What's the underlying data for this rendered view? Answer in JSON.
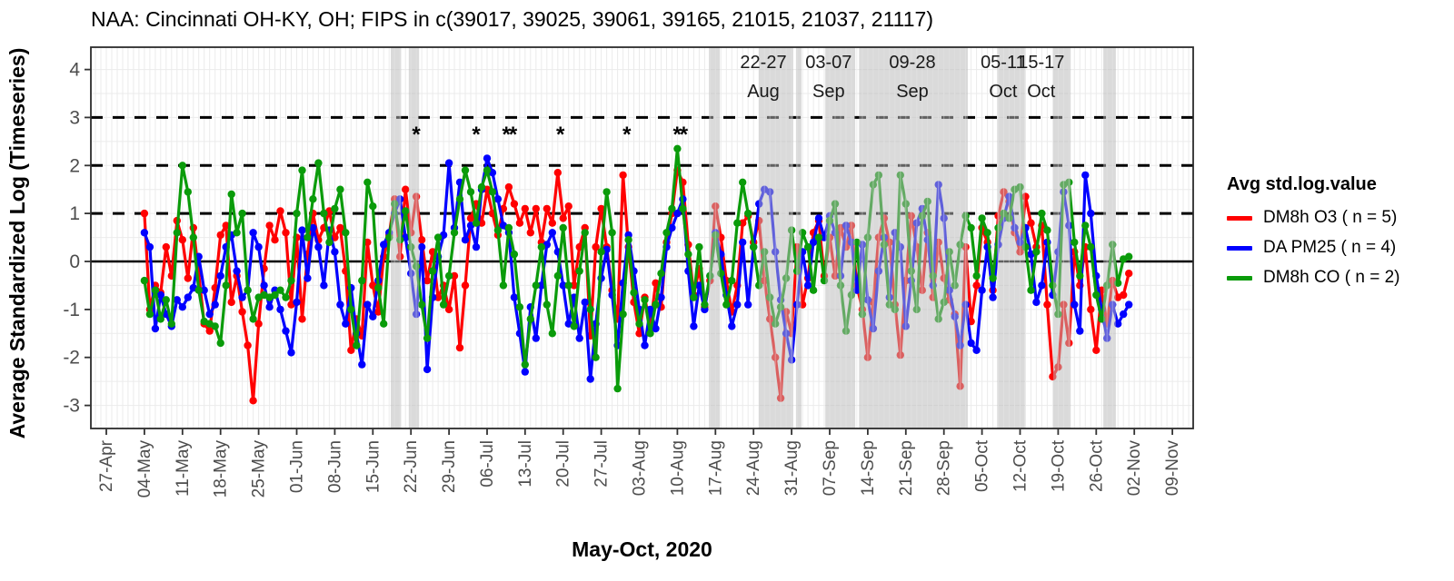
{
  "title": "NAA: Cincinnati OH-KY, OH; FIPS in c(39017, 39025, 39061, 39165, 21015, 21037, 21117)",
  "x_axis_title": "May-Oct, 2020",
  "y_axis_title": "Average Standardized Log (Timeseries)",
  "legend": {
    "title": "Avg std.log.value",
    "items": [
      {
        "label": "DM8h O3 ( n = 5)",
        "color": "#ff0000"
      },
      {
        "label": "DA PM25 ( n = 4)",
        "color": "#0000ff"
      },
      {
        "label": "DM8h CO ( n = 2)",
        "color": "#0a9b0a"
      }
    ]
  },
  "chart_data": {
    "type": "line",
    "x_frequency": "daily",
    "x_start": "2020-05-04",
    "x_end": "2020-11-01",
    "x_start_day_offset": 7,
    "x_tick_labels": [
      "27-Apr",
      "04-May",
      "11-May",
      "18-May",
      "25-May",
      "01-Jun",
      "08-Jun",
      "15-Jun",
      "22-Jun",
      "29-Jun",
      "06-Jul",
      "13-Jul",
      "20-Jul",
      "27-Jul",
      "03-Aug",
      "10-Aug",
      "17-Aug",
      "24-Aug",
      "31-Aug",
      "07-Sep",
      "14-Sep",
      "21-Sep",
      "28-Sep",
      "05-Oct",
      "12-Oct",
      "19-Oct",
      "26-Oct",
      "02-Nov",
      "09-Nov"
    ],
    "y_ticks": [
      -3,
      -2,
      -1,
      0,
      1,
      2,
      3,
      4
    ],
    "ylim": [
      -3.48,
      4.46
    ],
    "y_reference_lines": {
      "solid": [
        0
      ],
      "dashed": [
        1,
        2,
        3
      ]
    },
    "grid": true,
    "legend_position": "right",
    "colors": {
      "grid": "#ebebeb",
      "band_fill": "rgba(185,185,185,0.52)",
      "band_grid_stripe": "rgba(255,255,255,0.35)",
      "tick_text": "#4d4d4d",
      "axis": "#2b2b2b"
    },
    "series": [
      {
        "name": "DM8h O3 ( n = 5)",
        "color": "#ff0000",
        "values": [
          1.0,
          -1.0,
          -0.5,
          -0.65,
          0.3,
          -0.3,
          0.85,
          0.45,
          -0.35,
          0.7,
          -0.25,
          -1.3,
          -1.45,
          -0.55,
          0.55,
          0.75,
          -0.85,
          -0.3,
          -1.05,
          -1.75,
          -2.9,
          -1.3,
          -0.15,
          0.75,
          0.45,
          1.05,
          0.6,
          -0.9,
          0.5,
          -1.2,
          0.15,
          1.0,
          0.45,
          0.7,
          1.05,
          0.5,
          0.7,
          -0.2,
          -1.85,
          -1.2,
          -1.55,
          0.4,
          -0.5,
          -1.05,
          0.1,
          0.55,
          1.3,
          0.1,
          1.5,
          0.6,
          1.35,
          0.45,
          -0.4,
          0.2,
          -0.75,
          -0.5,
          -1.0,
          -0.3,
          -1.8,
          -0.5,
          0.9,
          1.2,
          0.8,
          1.5,
          1.0,
          0.55,
          1.1,
          1.55,
          1.2,
          0.8,
          1.1,
          0.6,
          1.1,
          0.4,
          1.1,
          0.8,
          1.85,
          0.9,
          1.15,
          -0.5,
          0.3,
          0.7,
          -1.55,
          0.3,
          1.1,
          0.3,
          -0.6,
          -1.2,
          1.8,
          0.3,
          -0.85,
          -1.5,
          -0.75,
          -1.35,
          -0.45,
          -0.95,
          0.4,
          1.0,
          1.9,
          1.65,
          0.35,
          -0.7,
          -0.15,
          -0.95,
          -0.4,
          1.15,
          0.5,
          -0.4,
          -1.05,
          -0.5,
          0.8,
          0.95,
          0.4,
          0.85,
          -0.4,
          -1.2,
          -2.0,
          -2.85,
          -1.05,
          -1.5,
          0.3,
          -0.9,
          -0.35,
          0.6,
          0.85,
          -0.3,
          0.5,
          -0.3,
          0.7,
          0.3,
          0.75,
          -0.5,
          -1.0,
          -2.0,
          -0.85,
          0.5,
          0.9,
          0.4,
          -0.9,
          -1.95,
          -0.4,
          0.95,
          0.3,
          -0.6,
          0.6,
          -0.75,
          0.4,
          -0.35,
          -0.8,
          -1.1,
          -2.6,
          0.3,
          -1.25,
          -0.5,
          0.7,
          0.4,
          -0.6,
          0.95,
          1.45,
          1.25,
          0.6,
          0.2,
          1.35,
          0.8,
          0.3,
          0.75,
          -0.9,
          -2.4,
          -2.2,
          -0.9,
          -1.7,
          0.2,
          -0.5,
          0.3,
          -1.0,
          -1.85,
          -0.6,
          -1.3,
          -0.4,
          -0.75,
          -0.7,
          -0.25
        ]
      },
      {
        "name": "DA PM25 ( n = 4)",
        "color": "#0000ff",
        "values": [
          0.6,
          0.3,
          -1.4,
          -0.7,
          -1.1,
          -1.35,
          -0.8,
          -0.95,
          -0.75,
          -0.55,
          0.1,
          -0.6,
          -1.1,
          -0.9,
          -0.3,
          0.3,
          0.55,
          -0.2,
          -0.75,
          -0.6,
          0.6,
          0.3,
          -0.5,
          -0.95,
          -0.6,
          -1.0,
          -1.45,
          -1.9,
          -0.85,
          0.65,
          -0.35,
          0.7,
          0.3,
          -0.5,
          0.65,
          0.2,
          -0.9,
          -1.3,
          -0.55,
          -1.5,
          -2.15,
          -0.9,
          -1.15,
          -0.4,
          0.35,
          0.6,
          1.0,
          1.3,
          0.5,
          -0.25,
          -1.1,
          0.3,
          -2.25,
          -0.75,
          0.1,
          0.55,
          2.05,
          0.7,
          1.65,
          0.45,
          0.75,
          0.3,
          1.5,
          2.15,
          1.85,
          1.3,
          0.75,
          0.6,
          -0.75,
          -1.5,
          -2.3,
          -0.95,
          -1.6,
          -0.5,
          0.35,
          0.6,
          0.2,
          -0.5,
          -1.3,
          -0.75,
          -1.6,
          -0.85,
          -2.45,
          -1.3,
          -0.35,
          0.25,
          -0.7,
          -1.75,
          -0.45,
          0.55,
          -0.2,
          -1.0,
          -1.75,
          -1.0,
          -1.4,
          -0.75,
          0.3,
          0.7,
          1.0,
          1.3,
          -0.2,
          -1.35,
          -0.5,
          -1.0,
          -0.3,
          0.6,
          0.15,
          -0.7,
          -1.35,
          -0.9,
          0.4,
          -0.9,
          0.3,
          1.2,
          1.5,
          1.45,
          0.2,
          -0.8,
          -1.5,
          -2.05,
          -0.9,
          0.2,
          -0.5,
          0.4,
          0.9,
          0.5,
          0.95,
          0.6,
          -0.3,
          0.75,
          0.4,
          -0.6,
          0.35,
          -0.8,
          -1.4,
          -0.2,
          0.5,
          -0.75,
          0.6,
          0.3,
          -1.35,
          -0.4,
          0.8,
          1.1,
          0.45,
          -0.5,
          1.6,
          0.9,
          -0.6,
          -1.15,
          -1.75,
          -0.9,
          -1.7,
          -1.85,
          -0.6,
          0.3,
          -0.75,
          0.35,
          0.9,
          1.35,
          0.7,
          0.4,
          0.7,
          0.15,
          -0.85,
          -0.5,
          0.4,
          -0.7,
          0.2,
          1.45,
          0.75,
          -0.9,
          -1.45,
          1.8,
          1.0,
          -0.3,
          -1.0,
          -1.6,
          -0.9,
          -1.3,
          -1.1,
          -0.9
        ]
      },
      {
        "name": "DM8h CO ( n = 2)",
        "color": "#0a9b0a",
        "values": [
          -0.4,
          -1.1,
          -0.6,
          -1.2,
          -0.8,
          -1.3,
          0.6,
          2.0,
          1.45,
          0.5,
          -0.6,
          -1.25,
          -1.3,
          -1.35,
          -1.7,
          -0.5,
          1.4,
          0.6,
          1.0,
          -0.6,
          -1.2,
          -0.75,
          -0.7,
          -0.75,
          -0.7,
          -0.6,
          -0.75,
          -0.4,
          1.0,
          1.9,
          0.5,
          1.3,
          2.05,
          1.0,
          0.4,
          1.1,
          1.5,
          0.6,
          -1.0,
          -1.75,
          -0.4,
          1.65,
          1.15,
          -0.55,
          -1.3,
          0.5,
          1.2,
          0.45,
          1.05,
          0.3,
          -0.1,
          -0.9,
          -1.6,
          -0.2,
          0.5,
          -0.9,
          -0.3,
          0.6,
          1.3,
          1.9,
          1.45,
          0.8,
          1.55,
          1.9,
          1.45,
          0.65,
          -0.5,
          0.7,
          0.15,
          -0.95,
          -2.15,
          -1.2,
          -0.5,
          0.3,
          -0.9,
          -1.5,
          -0.3,
          0.7,
          -0.5,
          -1.35,
          -0.2,
          0.6,
          -1.0,
          -2.0,
          0.2,
          1.45,
          0.6,
          -2.65,
          -1.1,
          0.45,
          -0.65,
          -1.3,
          -0.8,
          -1.5,
          -0.9,
          -0.25,
          0.6,
          1.1,
          2.35,
          1.1,
          0.15,
          -0.75,
          0.3,
          -0.9,
          -0.3,
          0.55,
          -0.25,
          -0.9,
          -0.4,
          0.8,
          1.65,
          1.0,
          0.3,
          -0.5,
          0.2,
          -0.75,
          -1.3,
          -0.95,
          -0.35,
          0.65,
          -0.2,
          0.6,
          0.3,
          -0.6,
          0.5,
          -0.4,
          0.85,
          1.2,
          -0.5,
          -1.45,
          -0.7,
          0.4,
          -1.1,
          0.5,
          1.6,
          1.8,
          0.35,
          -0.9,
          -1.0,
          1.8,
          1.2,
          -0.2,
          -1.0,
          0.95,
          1.25,
          -0.3,
          -1.2,
          -0.85,
          0.2,
          -0.5,
          0.35,
          0.95,
          0.7,
          -0.3,
          0.9,
          0.6,
          -0.35,
          0.7,
          1.0,
          0.9,
          1.5,
          1.55,
          0.3,
          -0.6,
          0.2,
          1.0,
          0.65,
          -0.5,
          -1.1,
          1.6,
          1.65,
          0.4,
          -0.3,
          0.75,
          0.3,
          -0.7,
          -1.2,
          -0.5,
          0.35,
          -0.45,
          0.05,
          0.1
        ]
      }
    ],
    "shaded_periods": [
      {
        "start_day": 52.3,
        "end_day": 54.2,
        "label": null,
        "month": null,
        "label_day": null
      },
      {
        "start_day": 55.6,
        "end_day": 57.5,
        "label": null,
        "month": null,
        "label_day": null
      },
      {
        "start_day": 110.8,
        "end_day": 112.8,
        "label": null,
        "month": null,
        "label_day": null
      },
      {
        "start_day": 120.0,
        "end_day": 126.3,
        "label": "22-27",
        "month": "Aug",
        "label_day": 120.8
      },
      {
        "start_day": 126.8,
        "end_day": 127.8,
        "label": null,
        "month": null,
        "label_day": null
      },
      {
        "start_day": 132.2,
        "end_day": 137.7,
        "label": "03-07",
        "month": "Sep",
        "label_day": 132.8
      },
      {
        "start_day": 138.4,
        "end_day": 158.4,
        "label": "09-28",
        "month": "Sep",
        "label_day": 148.2
      },
      {
        "start_day": 163.8,
        "end_day": 168.9,
        "label": "05-11",
        "month": "Oct",
        "label_day": 164.9
      },
      {
        "start_day": 174.1,
        "end_day": 177.3,
        "label": "15-17",
        "month": "Oct",
        "label_day": 171.9
      },
      {
        "start_day": 183.3,
        "end_day": 185.6,
        "label": null,
        "month": null,
        "label_day": null
      }
    ],
    "significance_markers": {
      "value": 2.65,
      "marks": [
        {
          "day": 57.0,
          "text": "*"
        },
        {
          "day": 68.0,
          "text": "*"
        },
        {
          "day": 74.0,
          "text": "**"
        },
        {
          "day": 83.5,
          "text": "*"
        },
        {
          "day": 95.7,
          "text": "*"
        },
        {
          "day": 105.4,
          "text": "**"
        }
      ]
    }
  }
}
